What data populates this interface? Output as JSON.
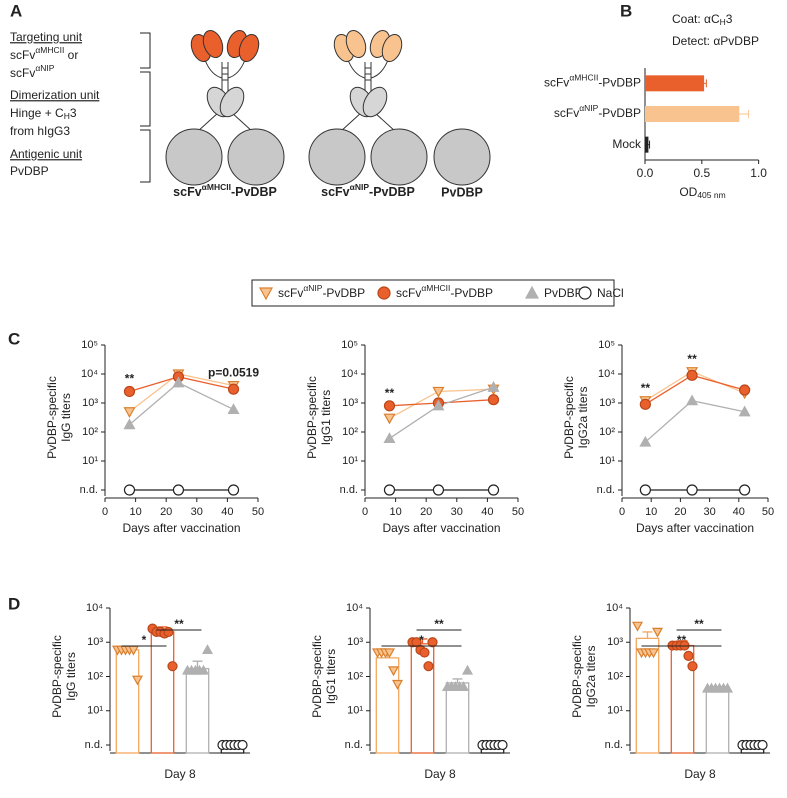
{
  "panel_labels": [
    "A",
    "B",
    "C",
    "D"
  ],
  "diagram": {
    "units": [
      {
        "title": "Targeting unit",
        "lines": [
          [
            "scFv",
            {
              "sup": "αMHCII"
            },
            " or"
          ],
          [
            "scFv",
            {
              "sup": "αNIP"
            }
          ]
        ]
      },
      {
        "title": "Dimerization unit",
        "lines": [
          [
            "Hinge + C",
            {
              "sub": "H"
            },
            "3"
          ],
          "from hIgG3"
        ]
      },
      {
        "title": "Antigenic unit",
        "lines": [
          "PvDBP"
        ]
      }
    ],
    "constructs": [
      [
        "scFv",
        {
          "sup": "αMHCII"
        },
        "-PvDBP"
      ],
      [
        "scFv",
        {
          "sup": "αNIP"
        },
        "-PvDBP"
      ],
      "PvDBP"
    ]
  },
  "legend": [
    {
      "name": [
        "scFv",
        {
          "sup": "αNIP"
        },
        "-PvDBP"
      ],
      "color": "#f9c38f",
      "edge": "#d9802f",
      "marker": "triangle-down"
    },
    {
      "name": [
        "scFv",
        {
          "sup": "αMHCII"
        },
        "-PvDBP"
      ],
      "color": "#e9602c",
      "edge": "#b9461a",
      "marker": "circle"
    },
    {
      "name": "PvDBP",
      "color": "#b0b0b0",
      "edge": "#b0b0b0",
      "marker": "triangle-up"
    },
    {
      "name": "NaCl",
      "color": "#ffffff",
      "edge": "#222222",
      "marker": "circle"
    }
  ],
  "chart_data": [
    {
      "type": "bar",
      "orientation": "horizontal",
      "annotations": [
        [
          "Coat: αC",
          {
            "sub": "H"
          },
          "3"
        ],
        "Detect: αPvDBP"
      ],
      "categories": [
        [
          "scFv",
          {
            "sup": "αMHCII"
          },
          "-PvDBP"
        ],
        [
          "scFv",
          {
            "sup": "αNIP"
          },
          "-PvDBP"
        ],
        "Mock"
      ],
      "values": [
        0.52,
        0.83,
        0.03
      ],
      "errors": [
        0.02,
        0.08,
        0.01
      ],
      "colors": [
        "#e9602c",
        "#f9c38f",
        "#222222"
      ],
      "xlim": [
        0,
        1.1
      ],
      "xticks": [
        {
          "value": 0,
          "label": "0.0"
        },
        {
          "value": 0.5,
          "label": "0.5"
        },
        {
          "value": 1,
          "label": "1.0"
        }
      ],
      "xlabel": [
        "OD",
        {
          "sub": "405 nm"
        }
      ]
    },
    {
      "type": "line",
      "log": true,
      "x": [
        8,
        24,
        42
      ],
      "xlim": [
        0,
        50
      ],
      "xticks": [
        0,
        10,
        20,
        30,
        40,
        50
      ],
      "ylim": [
        1,
        100000
      ],
      "yticks": [
        {
          "value": 1,
          "label": "n.d."
        },
        {
          "value": 10,
          "label": "10¹"
        },
        {
          "value": 100,
          "label": "10²"
        },
        {
          "value": 1000,
          "label": "10³"
        },
        {
          "value": 10000,
          "label": "10⁴"
        },
        {
          "value": 100000,
          "label": "10⁵"
        }
      ],
      "xlabel": "Days after vaccination",
      "ylabel": [
        "PvDBP-specific",
        "IgG titers"
      ],
      "series": [
        {
          "values": [
            500,
            10000,
            4000
          ]
        },
        {
          "values": [
            2500,
            8000,
            3000
          ]
        },
        {
          "values": [
            180,
            5000,
            600
          ]
        },
        {
          "values": [
            1,
            1,
            1
          ]
        }
      ],
      "annotations": [
        {
          "x": 8,
          "label": "**"
        },
        {
          "x": 42,
          "label": "p=0.0519"
        }
      ]
    },
    {
      "type": "line",
      "log": true,
      "x": [
        8,
        24,
        42
      ],
      "xlim": [
        0,
        50
      ],
      "xticks": [
        0,
        10,
        20,
        30,
        40,
        50
      ],
      "ylim": [
        1,
        100000
      ],
      "yticks": [
        {
          "value": 1,
          "label": "n.d."
        },
        {
          "value": 10,
          "label": "10¹"
        },
        {
          "value": 100,
          "label": "10²"
        },
        {
          "value": 1000,
          "label": "10³"
        },
        {
          "value": 10000,
          "label": "10⁴"
        },
        {
          "value": 100000,
          "label": "10⁵"
        }
      ],
      "xlabel": "Days after vaccination",
      "ylabel": [
        "PvDBP-specific",
        "IgG1 titers"
      ],
      "series": [
        {
          "values": [
            300,
            2500,
            3000
          ]
        },
        {
          "values": [
            800,
            1000,
            1300
          ]
        },
        {
          "values": [
            60,
            800,
            3500
          ]
        },
        {
          "values": [
            1,
            1,
            1
          ]
        }
      ],
      "annotations": [
        {
          "x": 8,
          "label": "**"
        }
      ]
    },
    {
      "type": "line",
      "log": true,
      "x": [
        8,
        24,
        42
      ],
      "xlim": [
        0,
        50
      ],
      "xticks": [
        0,
        10,
        20,
        30,
        40,
        50
      ],
      "ylim": [
        1,
        100000
      ],
      "yticks": [
        {
          "value": 1,
          "label": "n.d."
        },
        {
          "value": 10,
          "label": "10¹"
        },
        {
          "value": 100,
          "label": "10²"
        },
        {
          "value": 1000,
          "label": "10³"
        },
        {
          "value": 10000,
          "label": "10⁴"
        },
        {
          "value": 100000,
          "label": "10⁵"
        }
      ],
      "xlabel": "Days after vaccination",
      "ylabel": [
        "PvDBP-specific",
        "IgG2a titers"
      ],
      "series": [
        {
          "values": [
            1200,
            12000,
            2200
          ]
        },
        {
          "values": [
            900,
            9000,
            2800
          ]
        },
        {
          "values": [
            45,
            1200,
            500
          ]
        },
        {
          "values": [
            1,
            1,
            1
          ]
        }
      ],
      "annotations": [
        {
          "x": 8,
          "label": "**"
        },
        {
          "x": 24,
          "label": "**"
        }
      ]
    },
    {
      "type": "dotplot",
      "log": true,
      "ylim": [
        1,
        10000
      ],
      "yticks": [
        {
          "value": 1,
          "label": "n.d."
        },
        {
          "value": 10,
          "label": "10¹"
        },
        {
          "value": 100,
          "label": "10²"
        },
        {
          "value": 1000,
          "label": "10³"
        },
        {
          "value": 10000,
          "label": "10⁴"
        }
      ],
      "xlabel": "Day 8",
      "ylabel": [
        "PvDBP-specific",
        "IgG titers"
      ],
      "values": [
        600,
        2000,
        170,
        1
      ],
      "errors": [
        null,
        800,
        110,
        null
      ],
      "points": [
        [
          600,
          600,
          600,
          600,
          600,
          80
        ],
        [
          2500,
          2000,
          2000,
          1800,
          2000,
          200
        ],
        [
          150,
          150,
          150,
          150,
          150,
          600
        ],
        [
          1,
          1,
          1,
          1,
          1,
          1
        ]
      ],
      "comparisons": [
        {
          "groups": [
            0,
            1
          ],
          "label": "*"
        },
        {
          "groups": [
            1,
            2
          ],
          "label": "**"
        }
      ]
    },
    {
      "type": "dotplot",
      "log": true,
      "ylim": [
        1,
        10000
      ],
      "yticks": [
        {
          "value": 1,
          "label": "n.d."
        },
        {
          "value": 10,
          "label": "10¹"
        },
        {
          "value": 100,
          "label": "10²"
        },
        {
          "value": 1000,
          "label": "10³"
        },
        {
          "value": 10000,
          "label": "10⁴"
        }
      ],
      "xlabel": "Day 8",
      "ylabel": [
        "PvDBP-specific",
        "IgG1 titers"
      ],
      "values": [
        350,
        900,
        65,
        1
      ],
      "errors": [
        150,
        350,
        20,
        null
      ],
      "points": [
        [
          500,
          500,
          500,
          500,
          150,
          60
        ],
        [
          1000,
          1000,
          600,
          500,
          200,
          1000
        ],
        [
          50,
          50,
          50,
          50,
          50,
          150
        ],
        [
          1,
          1,
          1,
          1,
          1,
          1
        ]
      ],
      "comparisons": [
        {
          "groups": [
            0,
            2
          ],
          "label": "*"
        },
        {
          "groups": [
            1,
            2
          ],
          "label": "**"
        }
      ]
    },
    {
      "type": "dotplot",
      "log": true,
      "ylim": [
        1,
        10000
      ],
      "yticks": [
        {
          "value": 1,
          "label": "n.d."
        },
        {
          "value": 10,
          "label": "10¹"
        },
        {
          "value": 100,
          "label": "10²"
        },
        {
          "value": 1000,
          "label": "10³"
        },
        {
          "value": 10000,
          "label": "10⁴"
        }
      ],
      "xlabel": "Day 8",
      "ylabel": [
        "PvDBP-specific",
        "IgG2a titers"
      ],
      "values": [
        1300,
        800,
        45,
        1
      ],
      "errors": [
        700,
        300,
        null,
        null
      ],
      "points": [
        [
          3000,
          500,
          500,
          500,
          500,
          2000
        ],
        [
          800,
          800,
          800,
          800,
          400,
          200
        ],
        [
          45,
          45,
          45,
          45,
          45,
          45
        ],
        [
          1,
          1,
          1,
          1,
          1,
          1
        ]
      ],
      "comparisons": [
        {
          "groups": [
            0,
            2
          ],
          "label": "**"
        },
        {
          "groups": [
            1,
            2
          ],
          "label": "**"
        }
      ]
    }
  ]
}
